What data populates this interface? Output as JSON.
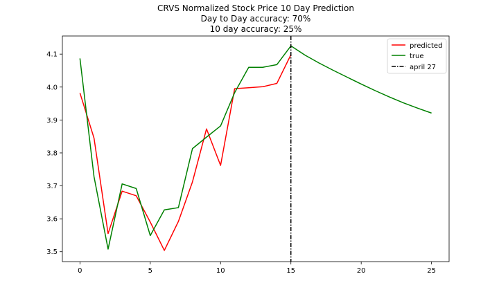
{
  "chart_data": {
    "type": "line",
    "title": "CRVS Normalized Stock Price 10 Day Prediction",
    "subtitle_lines": [
      "Day to Day accuracy: 70%",
      "10 day accuracy: 25%"
    ],
    "xlabel": "",
    "ylabel": "",
    "xlim": [
      -1.25,
      26.25
    ],
    "ylim": [
      3.47,
      4.155
    ],
    "xticks": [
      0,
      5,
      10,
      15,
      20,
      25
    ],
    "xtick_labels": [
      "0",
      "5",
      "10",
      "15",
      "20",
      "25"
    ],
    "yticks": [
      3.5,
      3.6,
      3.7,
      3.8,
      3.9,
      4.0,
      4.1
    ],
    "ytick_labels": [
      "3.5",
      "3.6",
      "3.7",
      "3.8",
      "3.9",
      "4.0",
      "4.1"
    ],
    "grid": false,
    "legend_position": "top-right",
    "series": [
      {
        "name": "predicted",
        "color": "#ff0000",
        "style": "solid",
        "x": [
          0,
          1,
          2,
          3,
          4,
          5,
          6,
          7,
          8,
          9,
          10,
          11,
          12,
          13,
          14,
          15
        ],
        "values": [
          3.982,
          3.845,
          3.555,
          3.684,
          3.67,
          3.59,
          3.504,
          3.592,
          3.712,
          3.873,
          3.762,
          3.995,
          3.998,
          4.001,
          4.011,
          4.098
        ]
      },
      {
        "name": "true",
        "color": "#008000",
        "style": "solid",
        "x": [
          0,
          1,
          2,
          3,
          4,
          5,
          6,
          7,
          8,
          9,
          10,
          11,
          12,
          13,
          14,
          15,
          16,
          17,
          18,
          19,
          20,
          21,
          22,
          23,
          24,
          25
        ],
        "values": [
          4.087,
          3.728,
          3.508,
          3.706,
          3.692,
          3.549,
          3.627,
          3.634,
          3.813,
          3.848,
          3.882,
          3.983,
          4.06,
          4.06,
          4.068,
          4.125,
          4.097,
          4.073,
          4.051,
          4.03,
          4.009,
          3.989,
          3.97,
          3.952,
          3.936,
          3.921
        ]
      }
    ],
    "vlines": [
      {
        "name": "april 27",
        "x": 15,
        "color": "#000000",
        "style": "dashdot"
      }
    ]
  }
}
